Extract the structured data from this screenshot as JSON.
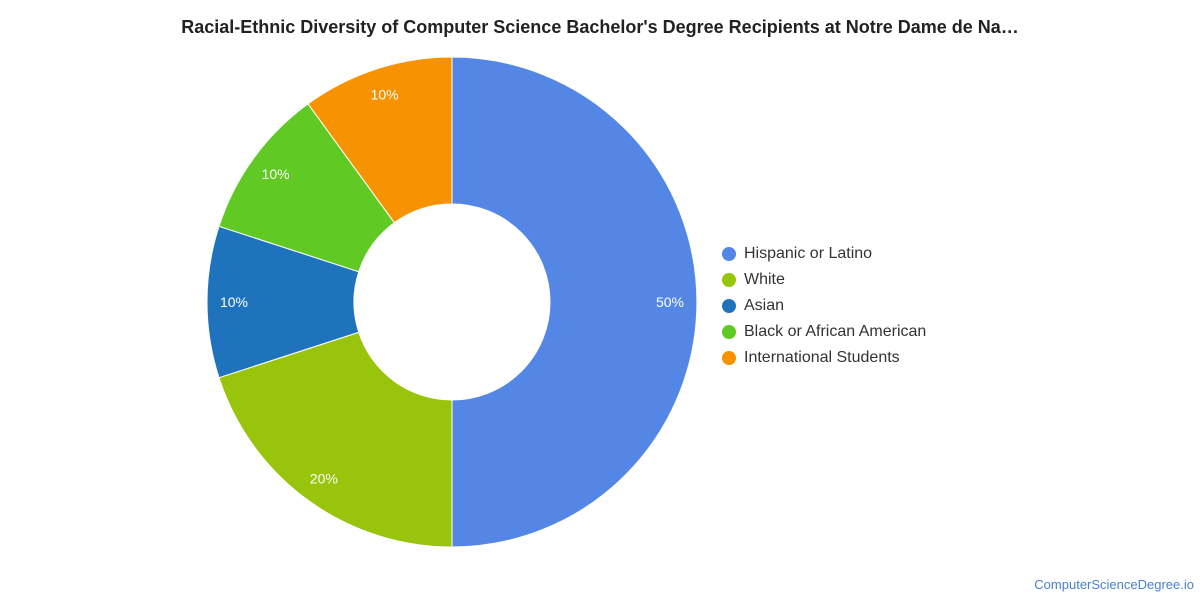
{
  "chart_data": {
    "type": "pie",
    "donut": true,
    "title": "Racial-Ethnic Diversity of Computer Science Bachelor's Degree Recipients at Notre Dame de Na…",
    "legend_position": "right",
    "slices": [
      {
        "label": "Hispanic or Latino",
        "value": 50,
        "value_label": "50%",
        "color": "#5487e5"
      },
      {
        "label": "White",
        "value": 20,
        "value_label": "20%",
        "color": "#98c40b"
      },
      {
        "label": "Asian",
        "value": 10,
        "value_label": "10%",
        "color": "#1f73bc"
      },
      {
        "label": "Black or African American",
        "value": 10,
        "value_label": "10%",
        "color": "#60c924"
      },
      {
        "label": "International Students",
        "value": 10,
        "value_label": "10%",
        "color": "#f79200"
      }
    ]
  },
  "watermark": "ComputerScienceDegree.io"
}
